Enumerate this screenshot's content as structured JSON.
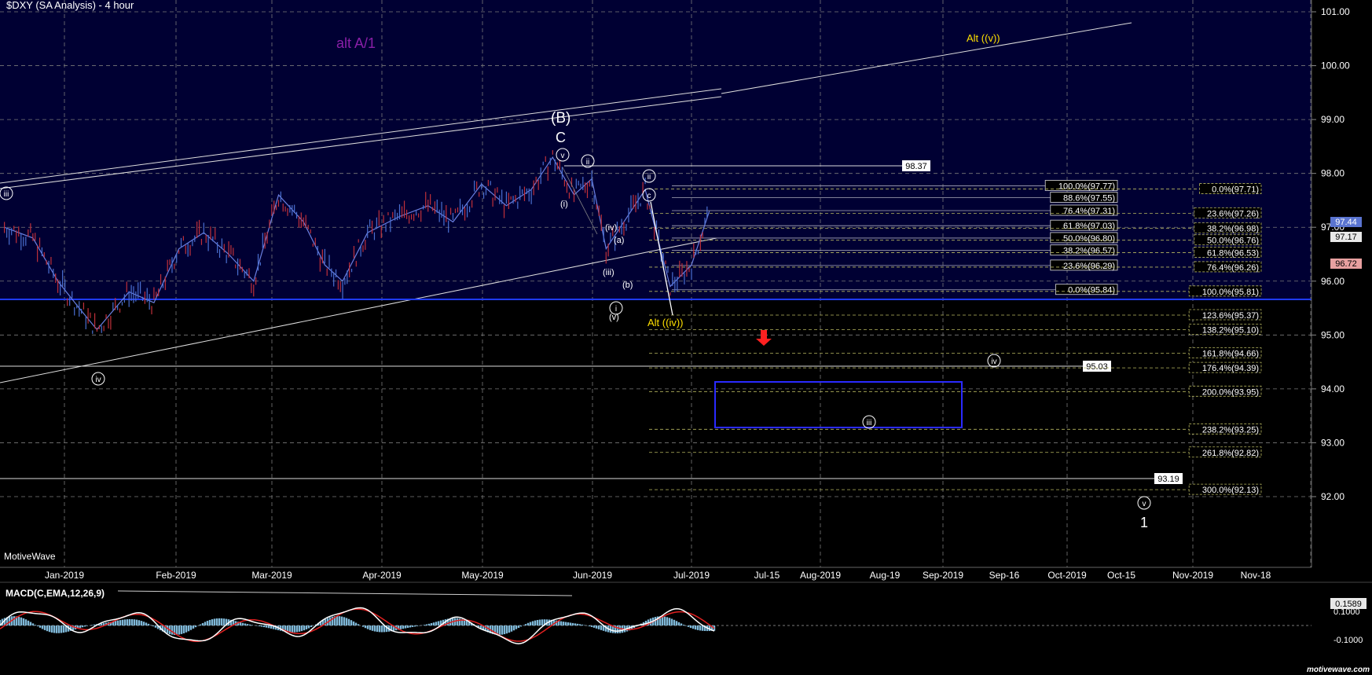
{
  "header": {
    "title": "$DXY (SA Analysis) - 4 hour",
    "brand": "MotiveWave",
    "watermark": "motivewave.com"
  },
  "colors": {
    "background": "#000000",
    "upper_bg": "#000033",
    "grid": "#8a8a8a",
    "price_up": "#4a6fd0",
    "price_down": "#c0303a",
    "support_line": "#1f3bff",
    "macd_hist": "#7fb8d8",
    "macd_line": "#ffffff",
    "signal_line": "#e02020",
    "fib_line": "#b8b860",
    "purple": "#8a1fa8",
    "yellow": "#ffe000",
    "arrow": "#ff2020"
  },
  "price_axis": {
    "ticks": [
      "101.00",
      "100.00",
      "99.00",
      "98.00",
      "97.00",
      "96.00",
      "95.00",
      "94.00",
      "93.00",
      "92.00"
    ],
    "current_price": "97.44",
    "label_2": "97.17",
    "label_3": "96.72"
  },
  "time_axis": {
    "labels": [
      "Jan-2019",
      "Feb-2019",
      "Mar-2019",
      "Apr-2019",
      "May-2019",
      "Jun-2019",
      "Jul-2019",
      "Jul-15",
      "Aug-2019",
      "Aug-19",
      "Sep-2019",
      "Sep-16",
      "Oct-2019",
      "Oct-15",
      "Nov-2019",
      "Nov-18"
    ]
  },
  "levels": {
    "l1": "98.37",
    "l2": "95.03",
    "l3": "93.19"
  },
  "fib_retracement_left": [
    "100.0%(97.77)",
    "88.6%(97.55)",
    "76.4%(97.31)",
    "61.8%(97.03)",
    "50.0%(96.80)",
    "38.2%(96.57)",
    "23.6%(96.29)",
    "0.0%(95.84)"
  ],
  "fib_right": [
    "0.0%(97.71)",
    "23.6%(97.26)",
    "38.2%(96.98)",
    "50.0%(96.76)",
    "61.8%(96.53)",
    "76.4%(96.26)",
    "100.0%(95.81)",
    "123.6%(95.37)",
    "138.2%(95.10)",
    "161.8%(94.66)",
    "176.4%(94.39)",
    "200.0%(93.95)",
    "238.2%(93.25)",
    "261.8%(92.82)",
    "300.0%(92.13)"
  ],
  "wave_labels": {
    "alt_a1": "alt A/1",
    "alt_v": "Alt ((v))",
    "alt_iv": "Alt ((iv))",
    "big_b": "(B)",
    "c": "C",
    "one": "1",
    "circ_v_top": "v",
    "circ_iii_left": "iii",
    "circ_iv_left": "iv",
    "circ_ii_top": "ii",
    "circ_ii_right": "ii",
    "circ_c": "c",
    "i_small": "(i)",
    "iv_small": "(iv)",
    "a_small": "(a)",
    "iii_small": "(iii)",
    "b_small": "(b)",
    "v_small": "(v)",
    "circ_i": "i",
    "circ_iv_right": "iv",
    "circ_iii_box": "iii",
    "circ_v_bottom": "v"
  },
  "macd": {
    "label": "MACD(C,EMA,12,26,9)",
    "value": "0.1589",
    "tick1": "0.1000",
    "tick2": "-0.1000"
  },
  "chart_data": {
    "type": "line",
    "title": "$DXY (SA Analysis) - 4 hour",
    "ylim": [
      91.8,
      101.3
    ],
    "grid": true,
    "series": [
      {
        "x": [
          "2018-12-20",
          "2018-12-28",
          "2019-01-04",
          "2019-01-10",
          "2019-01-15",
          "2019-01-24",
          "2019-01-31",
          "2019-02-07",
          "2019-02-14",
          "2019-02-21",
          "2019-02-28",
          "2019-03-07",
          "2019-03-14",
          "2019-03-20",
          "2019-03-25",
          "2019-04-01",
          "2019-04-10",
          "2019-04-18",
          "2019-04-25",
          "2019-05-03",
          "2019-05-10",
          "2019-05-17",
          "2019-05-23",
          "2019-05-29",
          "2019-06-03",
          "2019-06-07",
          "2019-06-12",
          "2019-06-18",
          "2019-06-25",
          "2019-07-01",
          "2019-07-06"
        ],
        "values": [
          97.0,
          96.8,
          96.0,
          95.5,
          95.1,
          95.8,
          95.6,
          96.6,
          96.9,
          96.5,
          96.0,
          97.6,
          97.1,
          96.3,
          96.0,
          96.9,
          97.2,
          97.4,
          97.1,
          97.8,
          97.4,
          97.7,
          98.3,
          97.6,
          97.9,
          96.6,
          97.1,
          97.7,
          95.9,
          96.3,
          97.3
        ]
      }
    ]
  }
}
